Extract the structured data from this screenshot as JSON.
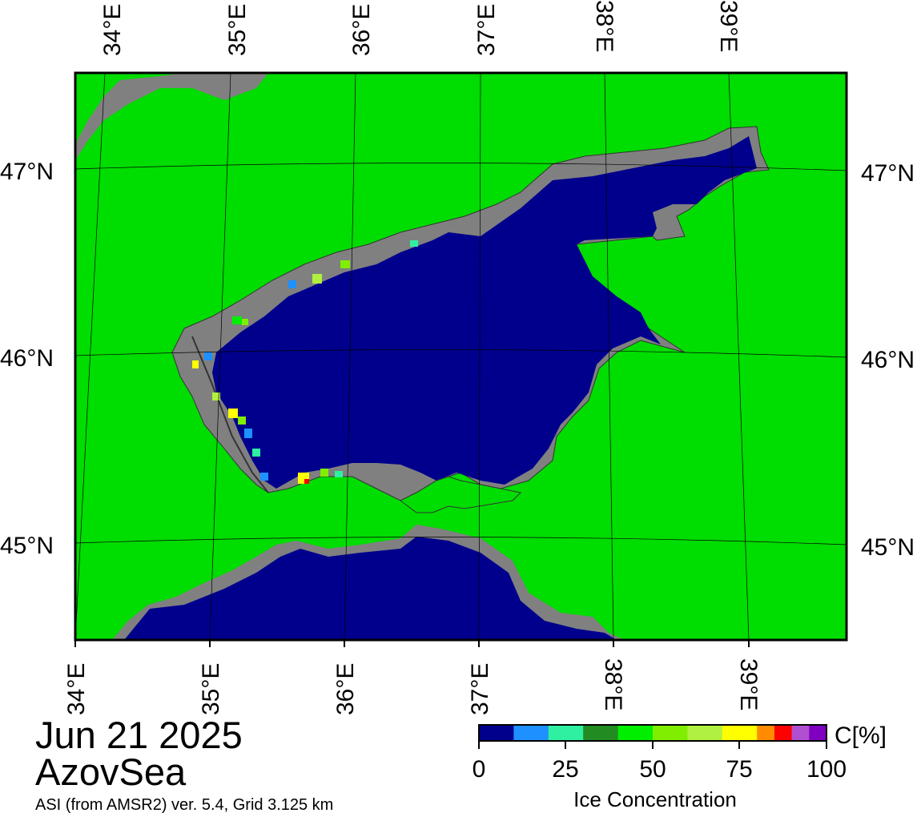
{
  "colors": {
    "land": "#00dd00",
    "coast_mask": "#808080",
    "sea": "#00008c",
    "border": "#000000"
  },
  "map": {
    "lon_labels": [
      "34°E",
      "35°E",
      "36°E",
      "37°E",
      "38°E",
      "39°E"
    ],
    "lat_labels": [
      "47°N",
      "46°N",
      "45°N"
    ]
  },
  "info": {
    "date": "Jun 21 2025",
    "region": "AzovSea",
    "source": "ASI (from AMSR2) ver. 5.4,  Grid 3.125 km"
  },
  "colorbar": {
    "unit": "C[%]",
    "title": "Ice Concentration",
    "tick_labels": [
      "0",
      "25",
      "50",
      "75",
      "100"
    ],
    "colors": [
      "#00008c",
      "#00008c",
      "#1e90ff",
      "#1e90ff",
      "#2ef0a0",
      "#2ef0a0",
      "#228b22",
      "#228b22",
      "#00ee00",
      "#00ee00",
      "#80ee00",
      "#80ee00",
      "#b0f040",
      "#b0f040",
      "#ffff00",
      "#ffff00",
      "#ff8c00",
      "#ff0000",
      "#b050d0",
      "#8000c0"
    ]
  }
}
